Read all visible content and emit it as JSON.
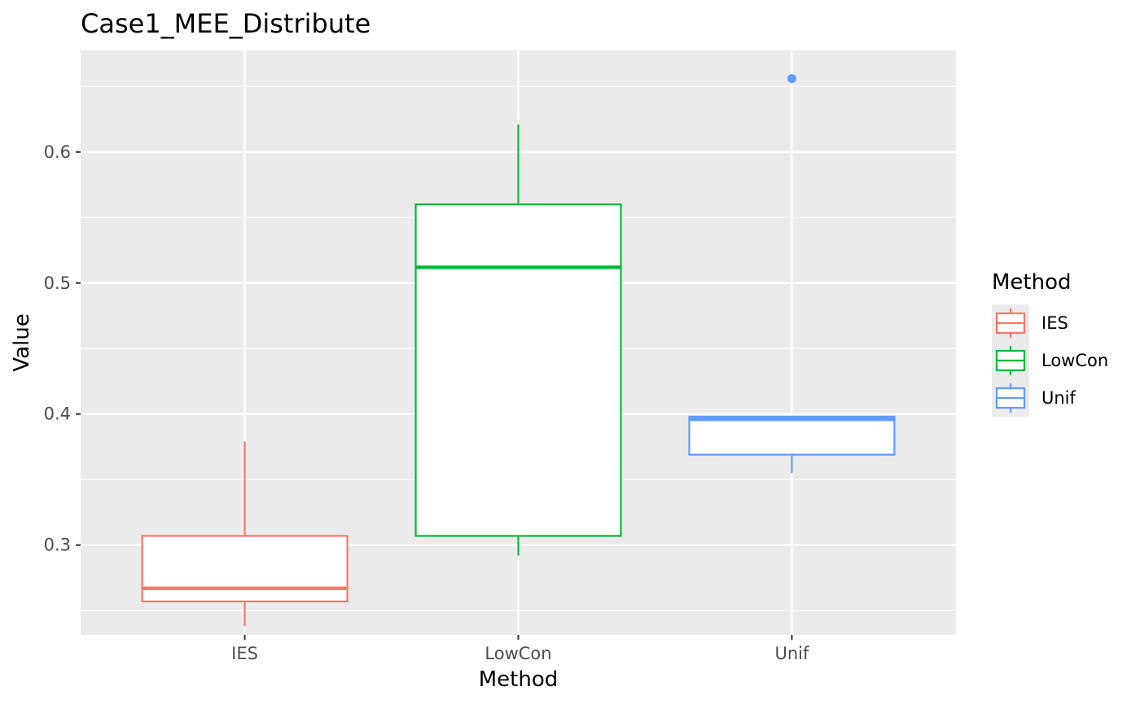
{
  "chart_data": {
    "type": "box",
    "title": "Case1_MEE_Distribute",
    "xlabel": "Method",
    "ylabel": "Value",
    "categories": [
      "IES",
      "LowCon",
      "Unif"
    ],
    "ylim": [
      0.2315,
      0.6775
    ],
    "yticks": [
      0.3,
      0.4,
      0.5,
      0.6
    ],
    "ytick_labels": [
      "0.3",
      "0.4",
      "0.5",
      "0.6"
    ],
    "boxes": [
      {
        "category": "IES",
        "whisker_low": 0.238,
        "q1": 0.257,
        "median": 0.267,
        "q3": 0.307,
        "whisker_high": 0.379,
        "outliers": [],
        "color": "#F8766D"
      },
      {
        "category": "LowCon",
        "whisker_low": 0.292,
        "q1": 0.307,
        "median": 0.512,
        "q3": 0.56,
        "whisker_high": 0.621,
        "outliers": [],
        "color": "#00BA38"
      },
      {
        "category": "Unif",
        "whisker_low": 0.355,
        "q1": 0.369,
        "median": 0.396,
        "q3": 0.398,
        "whisker_high": 0.398,
        "outliers": [
          0.656
        ],
        "color": "#619CFF"
      }
    ],
    "legend": {
      "title": "Method",
      "position": "right",
      "items": [
        "IES",
        "LowCon",
        "Unif"
      ]
    },
    "grid": true,
    "panel_background": "#EBEBEB",
    "grid_color": "#FFFFFF"
  }
}
